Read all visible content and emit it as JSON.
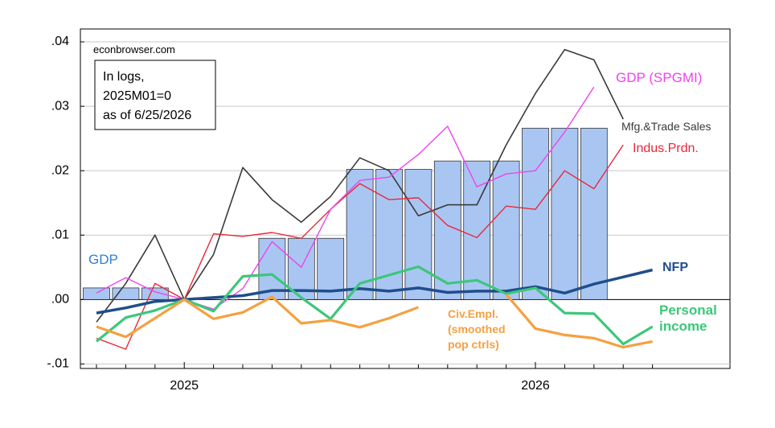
{
  "chart_data": {
    "type": "line",
    "source": "econbrowser.com",
    "note": [
      "In logs,",
      "2025M01=0",
      "as of 6/25/2026"
    ],
    "categories": [
      null,
      null,
      null,
      "2025",
      null,
      null,
      null,
      null,
      null,
      null,
      null,
      null,
      null,
      null,
      null,
      "2026",
      null,
      null,
      null,
      null
    ],
    "ylim": [
      -0.0107,
      0.042
    ],
    "yticks": [
      {
        "value": -0.01,
        "label": "-.01"
      },
      {
        "value": 0,
        "label": ".00"
      },
      {
        "value": 0.01,
        "label": ".01"
      },
      {
        "value": 0.02,
        "label": ".02"
      },
      {
        "value": 0.03,
        "label": ".03"
      },
      {
        "value": 0.04,
        "label": ".04"
      }
    ],
    "grid": true,
    "series": [
      {
        "name": "GDP",
        "type": "bar",
        "color": "#a9c6f3",
        "label_color": "#2f7fd8",
        "values": [
          0.0018,
          0.0018,
          0.0018,
          null,
          null,
          null,
          0.0095,
          0.0095,
          0.0095,
          0.0202,
          0.0202,
          0.0202,
          0.0215,
          0.0215,
          0.0215,
          0.0266,
          0.0266,
          0.0266,
          null,
          null
        ]
      },
      {
        "name": "Mfg.&Trade Sales",
        "type": "line",
        "color": "#3a3a3a",
        "values": [
          -0.0035,
          0.0025,
          0.01,
          0.0,
          0.007,
          0.0205,
          0.0155,
          0.012,
          0.016,
          0.022,
          0.02,
          0.013,
          0.0147,
          0.0147,
          0.024,
          0.032,
          0.0388,
          0.0372,
          0.028,
          null
        ]
      },
      {
        "name": "Indus.Prdn.",
        "type": "line",
        "color": "#e8283a",
        "values": [
          -0.006,
          -0.0077,
          0.0025,
          0.0,
          0.0102,
          0.0098,
          0.0104,
          0.0095,
          0.014,
          0.018,
          0.0155,
          0.0158,
          0.0115,
          0.0096,
          0.0145,
          0.014,
          0.02,
          0.0172,
          0.024,
          null
        ]
      },
      {
        "name": "GDP (SPGMI)",
        "type": "line",
        "color": "#ee44ee",
        "values": [
          0.001,
          0.0034,
          0.0012,
          0.0,
          -0.0015,
          0.0017,
          0.009,
          0.005,
          0.014,
          0.0185,
          0.019,
          0.0225,
          0.0269,
          0.0175,
          0.0195,
          0.02,
          0.026,
          0.033,
          null,
          null
        ]
      },
      {
        "name": "NFP",
        "type": "line",
        "color": "#1f4e8c",
        "values": [
          -0.0021,
          -0.0013,
          -0.0003,
          0.0,
          0.0003,
          0.0006,
          0.0014,
          0.0014,
          0.0013,
          0.0017,
          0.0013,
          0.0018,
          0.0011,
          0.0013,
          0.0013,
          0.002,
          0.001,
          0.0024,
          0.0035,
          0.0046
        ]
      },
      {
        "name": "Personal income",
        "type": "line",
        "color": "#3cc77a",
        "values": [
          -0.0065,
          -0.0028,
          -0.0017,
          0.0,
          -0.0018,
          0.0036,
          0.0039,
          0.0003,
          -0.003,
          0.0025,
          0.0038,
          0.0051,
          0.0025,
          0.003,
          0.0009,
          0.0018,
          -0.0021,
          -0.0022,
          -0.0069,
          -0.0042
        ]
      },
      {
        "name": "Civ.Empl. (smoothed pop ctrls)",
        "type": "line",
        "color": "#f5a040",
        "values": [
          -0.0042,
          -0.0058,
          -0.0029,
          0.0,
          -0.003,
          -0.002,
          0.0004,
          -0.0037,
          -0.0032,
          -0.0043,
          -0.0029,
          -0.0012,
          null,
          null,
          0.0008,
          -0.0045,
          -0.0055,
          -0.006,
          -0.0074,
          -0.0065
        ]
      }
    ]
  }
}
